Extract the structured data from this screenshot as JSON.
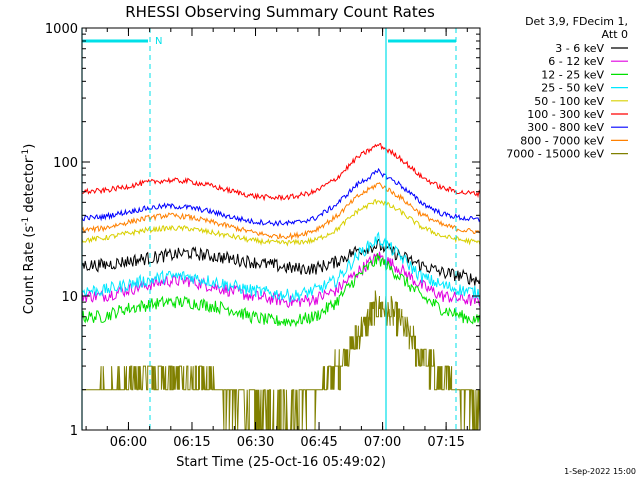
{
  "chart_data": {
    "type": "line",
    "title": "RHESSI Observing Summary Count Rates",
    "xlabel": "Start Time (25-Oct-16 05:49:02)",
    "ylabel_main": "Count Rate (s",
    "ylabel_sup1": "-1",
    "ylabel_mid": " detector",
    "ylabel_sup2": "-1",
    "ylabel_end": ")",
    "yscale": "log",
    "ylim": [
      1,
      1000
    ],
    "xlim": [
      "05:49:02",
      "07:23:00"
    ],
    "x_ticks": [
      "06:00",
      "06:15",
      "06:30",
      "06:45",
      "07:00",
      "07:15"
    ],
    "y_ticks": [
      "1",
      "10",
      "100",
      "1000"
    ],
    "legend_header": [
      "Det 3,9, FDecim 1,",
      "Att 0"
    ],
    "legend_position": "right",
    "footer": "1-Sep-2022 15:00",
    "flag_label": "N",
    "x_minutes_from_start": [
      0,
      5,
      10,
      15,
      20,
      25,
      30,
      35,
      40,
      45,
      50,
      55,
      60,
      65,
      70,
      75,
      80,
      85,
      90,
      94
    ],
    "series": [
      {
        "name": "3 - 6 keV",
        "color": "#000000",
        "values": [
          17,
          17,
          18,
          19,
          20,
          21,
          20,
          19,
          18,
          17,
          16,
          16,
          18,
          22,
          24,
          20,
          17,
          15,
          14,
          13
        ]
      },
      {
        "name": "6 - 12 keV",
        "color": "#e000e0",
        "values": [
          10,
          10,
          11,
          12,
          13,
          13,
          12,
          11,
          10,
          9.5,
          9,
          9.5,
          11,
          15,
          20,
          16,
          12,
          10,
          9.5,
          9
        ]
      },
      {
        "name": "12 - 25 keV",
        "color": "#00e000",
        "values": [
          7,
          7,
          8,
          8.5,
          9,
          9,
          8.5,
          8,
          7,
          6.5,
          6.5,
          7,
          9,
          14,
          19,
          14,
          10,
          8,
          7,
          6.5
        ]
      },
      {
        "name": "25 - 50 keV",
        "color": "#00e8ff",
        "values": [
          11,
          11,
          12,
          13,
          14,
          14,
          13,
          12,
          11,
          10.5,
          10,
          11,
          13,
          20,
          27,
          20,
          14,
          12,
          11,
          10.5
        ]
      },
      {
        "name": "50 - 100 keV",
        "color": "#d8d000",
        "values": [
          26,
          27,
          29,
          31,
          32,
          32,
          30,
          28,
          26,
          25,
          25,
          26,
          31,
          43,
          52,
          43,
          33,
          28,
          26,
          25
        ]
      },
      {
        "name": "100 - 300 keV",
        "color": "#ff0000",
        "values": [
          60,
          61,
          65,
          70,
          73,
          72,
          67,
          61,
          56,
          54,
          55,
          60,
          75,
          108,
          135,
          108,
          78,
          64,
          59,
          58
        ]
      },
      {
        "name": "300 - 800 keV",
        "color": "#0000ff",
        "values": [
          38,
          39,
          42,
          45,
          47,
          46,
          43,
          39,
          36,
          35,
          35,
          38,
          48,
          68,
          85,
          68,
          50,
          41,
          38,
          37
        ]
      },
      {
        "name": "800 - 7000 keV",
        "color": "#ff8000",
        "values": [
          31,
          32,
          35,
          38,
          40,
          39,
          36,
          33,
          30,
          28,
          28,
          31,
          39,
          55,
          69,
          55,
          41,
          34,
          31,
          30
        ]
      },
      {
        "name": "7000 - 15000 keV",
        "color": "#808000",
        "values": [
          1.8,
          2.0,
          2.2,
          2.5,
          2.6,
          2.4,
          2.1,
          1.8,
          1.5,
          1.4,
          1.5,
          1.8,
          2.8,
          5.0,
          8.5,
          6.5,
          3.5,
          2.3,
          1.8,
          1.6
        ]
      }
    ]
  }
}
